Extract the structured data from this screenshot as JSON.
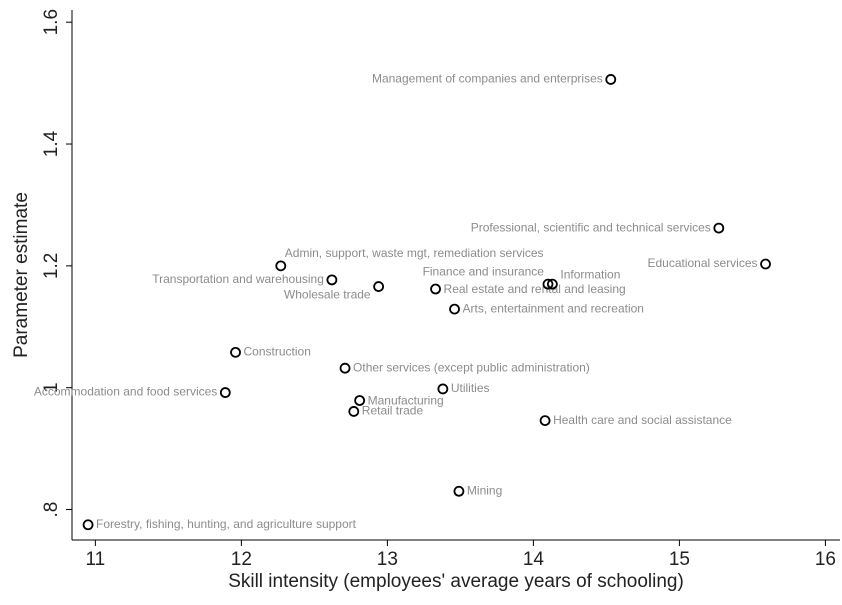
{
  "chart_data": {
    "type": "scatter",
    "x_label": "Skill intensity (employees' average years of schooling)",
    "y_label": "Parameter estimate",
    "xlim": [
      10.84,
      16.1
    ],
    "xticks": [
      11,
      12,
      13,
      14,
      15,
      16
    ],
    "ylim": [
      0.75,
      1.62
    ],
    "yticks": [
      {
        "value": 0.8,
        "label": ".8"
      },
      1,
      1.2,
      1.4,
      1.6
    ],
    "color": "#000000",
    "label_color": "#8c8c8c",
    "labels": [
      "Forestry, fishing, hunting, and agriculture support",
      "Accommodation and food services",
      "Construction",
      "Admin, support, waste mgt, remediation services",
      "Transportation and warehousing",
      "Wholesale trade",
      "Other services (except public administration)",
      "Manufacturing",
      "Retail trade",
      "Real estate and rental and leasing",
      "Utilities",
      "Arts, entertainment and recreation",
      "Mining",
      "Finance and insurance",
      "Information",
      "Health care and social assistance",
      "Management of companies and enterprises",
      "Professional, scientific and technical services",
      "Educational services"
    ],
    "x": [
      10.95,
      11.89,
      11.96,
      12.27,
      12.62,
      12.94,
      12.71,
      12.81,
      12.77,
      13.33,
      13.38,
      13.46,
      13.49,
      14.1,
      14.13,
      14.08,
      14.53,
      15.27,
      15.59
    ],
    "values": [
      0.775,
      0.992,
      1.058,
      1.2,
      1.177,
      1.166,
      1.032,
      0.979,
      0.961,
      1.162,
      0.998,
      1.129,
      0.83,
      1.17,
      1.17,
      0.946,
      1.506,
      1.262,
      1.203
    ]
  }
}
